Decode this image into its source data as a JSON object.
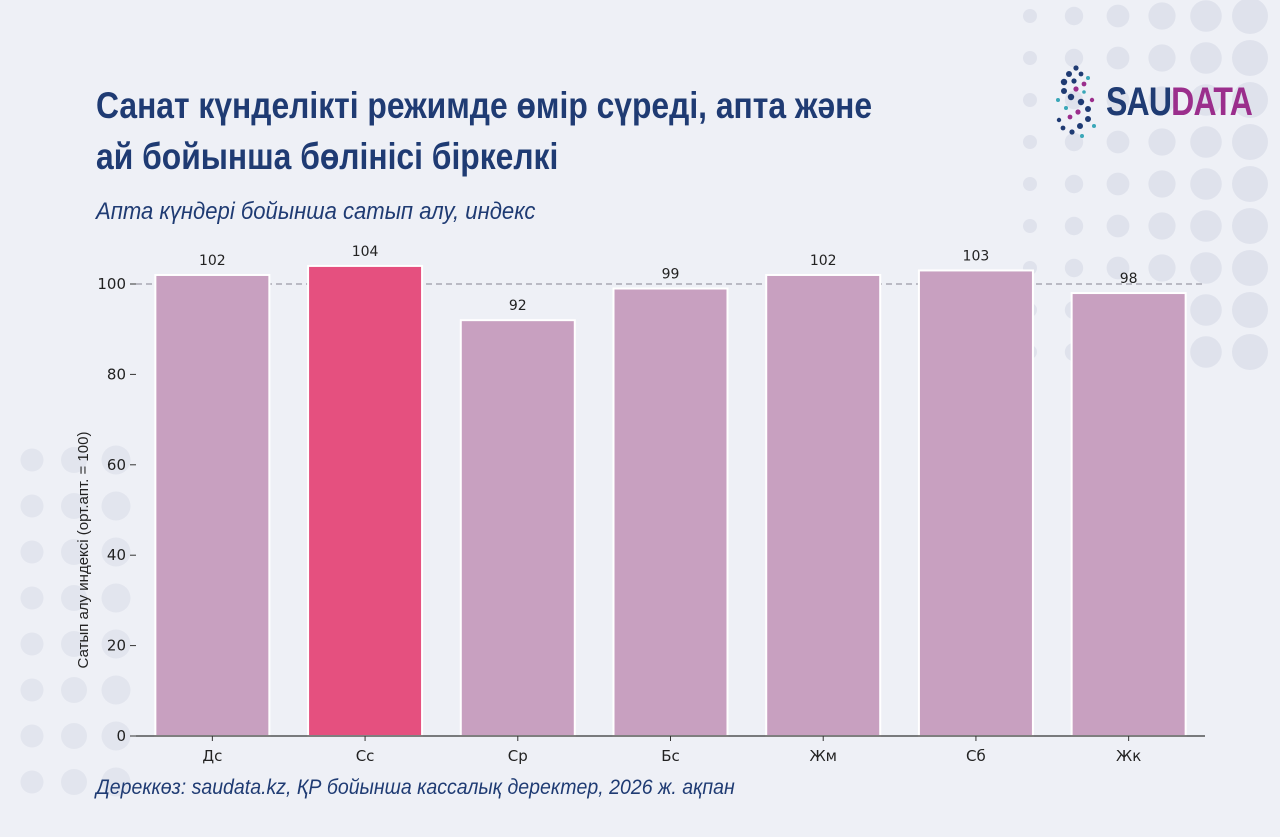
{
  "header": {
    "title_line1": "Санат күнделікті режимде өмір сүреді, апта және",
    "title_line2": "ай бойынша бөлінісі біркелкі",
    "subtitle": "Апта күндері бойынша сатып алу, индекс"
  },
  "logo": {
    "part1": "SAU",
    "part2": "DATA",
    "icon": "saudata-logo-icon"
  },
  "footer": {
    "source": "Дереккөз: saudata.kz, ҚР бойынша кассалық деректер, 2026 ж. ақпан"
  },
  "chart_data": {
    "type": "bar",
    "categories": [
      "Дс",
      "Сс",
      "Ср",
      "Бс",
      "Жм",
      "Сб",
      "Жк"
    ],
    "values": [
      102,
      104,
      92,
      99,
      102,
      103,
      98
    ],
    "data_labels": [
      "102",
      "104",
      "92",
      "99",
      "102",
      "103",
      "98"
    ],
    "ylabel": "Сатып алу индексі (орт.апт. = 100)",
    "yticks": [
      "0",
      "20",
      "40",
      "60",
      "80",
      "100"
    ],
    "ylim": [
      0,
      108
    ],
    "reference_line": 100,
    "highlight_index": 1,
    "grid": false,
    "colors": {
      "bar": "#c8a0c0",
      "highlight": "#e5507f",
      "reference": "#9a9aa6",
      "axis": "#333333"
    }
  }
}
